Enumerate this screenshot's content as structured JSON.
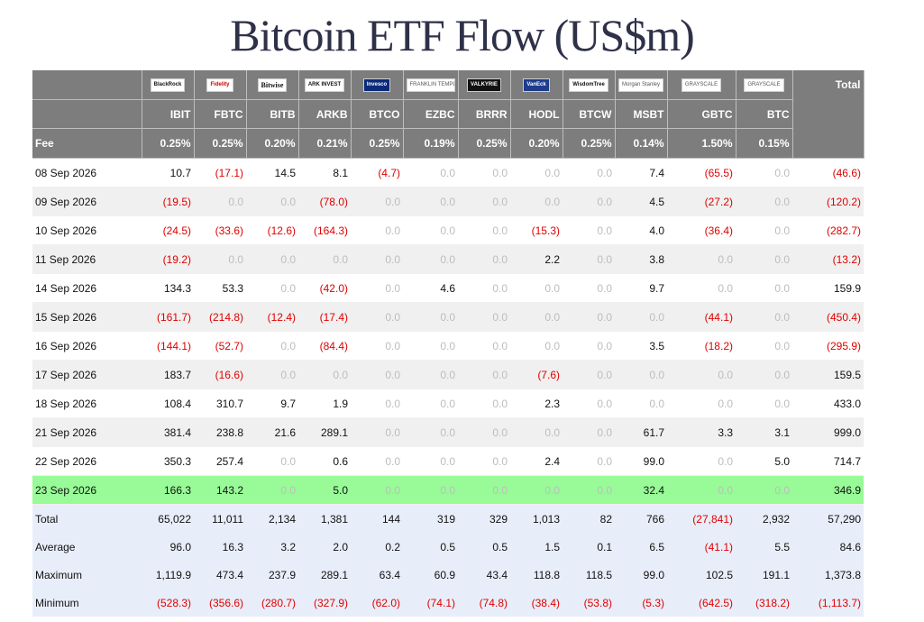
{
  "title": "Bitcoin ETF Flow (US$m)",
  "header": {
    "logos": [
      "BlackRock",
      "Fidelity",
      "Bitwise",
      "ARK INVEST",
      "Invesco",
      "FRANKLIN TEMPLETON",
      "VALKYRIE",
      "VanEck",
      "WisdomTree",
      "Morgan Stanley",
      "GRAYSCALE",
      "GRAYSCALE"
    ],
    "total_label": "Total",
    "tickers": [
      "IBIT",
      "FBTC",
      "BITB",
      "ARKB",
      "BTCO",
      "EZBC",
      "BRRR",
      "HODL",
      "BTCW",
      "MSBT",
      "GBTC",
      "BTC"
    ],
    "fee_label": "Fee",
    "fees": [
      "0.25%",
      "0.25%",
      "0.20%",
      "0.21%",
      "0.25%",
      "0.19%",
      "0.25%",
      "0.20%",
      "0.25%",
      "0.14%",
      "1.50%",
      "0.15%"
    ]
  },
  "rows": [
    {
      "date": "08 Sep 2026",
      "cells": [
        "10.7",
        "(17.1)",
        "14.5",
        "8.1",
        "(4.7)",
        "0.0",
        "0.0",
        "0.0",
        "0.0",
        "7.4",
        "(65.5)",
        "0.0"
      ],
      "total": "(46.6)"
    },
    {
      "date": "09 Sep 2026",
      "cells": [
        "(19.5)",
        "0.0",
        "0.0",
        "(78.0)",
        "0.0",
        "0.0",
        "0.0",
        "0.0",
        "0.0",
        "4.5",
        "(27.2)",
        "0.0"
      ],
      "total": "(120.2)"
    },
    {
      "date": "10 Sep 2026",
      "cells": [
        "(24.5)",
        "(33.6)",
        "(12.6)",
        "(164.3)",
        "0.0",
        "0.0",
        "0.0",
        "(15.3)",
        "0.0",
        "4.0",
        "(36.4)",
        "0.0"
      ],
      "total": "(282.7)"
    },
    {
      "date": "11 Sep 2026",
      "cells": [
        "(19.2)",
        "0.0",
        "0.0",
        "0.0",
        "0.0",
        "0.0",
        "0.0",
        "2.2",
        "0.0",
        "3.8",
        "0.0",
        "0.0"
      ],
      "total": "(13.2)"
    },
    {
      "date": "14 Sep 2026",
      "cells": [
        "134.3",
        "53.3",
        "0.0",
        "(42.0)",
        "0.0",
        "4.6",
        "0.0",
        "0.0",
        "0.0",
        "9.7",
        "0.0",
        "0.0"
      ],
      "total": "159.9"
    },
    {
      "date": "15 Sep 2026",
      "cells": [
        "(161.7)",
        "(214.8)",
        "(12.4)",
        "(17.4)",
        "0.0",
        "0.0",
        "0.0",
        "0.0",
        "0.0",
        "0.0",
        "(44.1)",
        "0.0"
      ],
      "total": "(450.4)"
    },
    {
      "date": "16 Sep 2026",
      "cells": [
        "(144.1)",
        "(52.7)",
        "0.0",
        "(84.4)",
        "0.0",
        "0.0",
        "0.0",
        "0.0",
        "0.0",
        "3.5",
        "(18.2)",
        "0.0"
      ],
      "total": "(295.9)"
    },
    {
      "date": "17 Sep 2026",
      "cells": [
        "183.7",
        "(16.6)",
        "0.0",
        "0.0",
        "0.0",
        "0.0",
        "0.0",
        "(7.6)",
        "0.0",
        "0.0",
        "0.0",
        "0.0"
      ],
      "total": "159.5"
    },
    {
      "date": "18 Sep 2026",
      "cells": [
        "108.4",
        "310.7",
        "9.7",
        "1.9",
        "0.0",
        "0.0",
        "0.0",
        "2.3",
        "0.0",
        "0.0",
        "0.0",
        "0.0"
      ],
      "total": "433.0"
    },
    {
      "date": "21 Sep 2026",
      "cells": [
        "381.4",
        "238.8",
        "21.6",
        "289.1",
        "0.0",
        "0.0",
        "0.0",
        "0.0",
        "0.0",
        "61.7",
        "3.3",
        "3.1"
      ],
      "total": "999.0"
    },
    {
      "date": "22 Sep 2026",
      "cells": [
        "350.3",
        "257.4",
        "0.0",
        "0.6",
        "0.0",
        "0.0",
        "0.0",
        "2.4",
        "0.0",
        "99.0",
        "0.0",
        "5.0"
      ],
      "total": "714.7"
    },
    {
      "date": "23 Sep 2026",
      "cells": [
        "166.3",
        "143.2",
        "0.0",
        "5.0",
        "0.0",
        "0.0",
        "0.0",
        "0.0",
        "0.0",
        "32.4",
        "0.0",
        "0.0"
      ],
      "total": "346.9",
      "highlight": true
    }
  ],
  "stats": [
    {
      "label": "Total",
      "cells": [
        "65,022",
        "11,011",
        "2,134",
        "1,381",
        "144",
        "319",
        "329",
        "1,013",
        "82",
        "766",
        "(27,841)",
        "2,932"
      ],
      "total": "57,290"
    },
    {
      "label": "Average",
      "cells": [
        "96.0",
        "16.3",
        "3.2",
        "2.0",
        "0.2",
        "0.5",
        "0.5",
        "1.5",
        "0.1",
        "6.5",
        "(41.1)",
        "5.5"
      ],
      "total": "84.6"
    },
    {
      "label": "Maximum",
      "cells": [
        "1,119.9",
        "473.4",
        "237.9",
        "289.1",
        "63.4",
        "60.9",
        "43.4",
        "118.8",
        "118.5",
        "99.0",
        "102.5",
        "191.1"
      ],
      "total": "1,373.8"
    },
    {
      "label": "Minimum",
      "cells": [
        "(528.3)",
        "(356.6)",
        "(280.7)",
        "(327.9)",
        "(62.0)",
        "(74.1)",
        "(74.8)",
        "(38.4)",
        "(53.8)",
        "(5.3)",
        "(642.5)",
        "(318.2)"
      ],
      "total": "(1,113.7)"
    }
  ],
  "colors": {
    "header_bg": "#7d7d7d",
    "highlight_row": "#98fb98",
    "stats_bg": "#e8eef9",
    "negative": "#e00000",
    "zero": "#bdbdbd"
  }
}
